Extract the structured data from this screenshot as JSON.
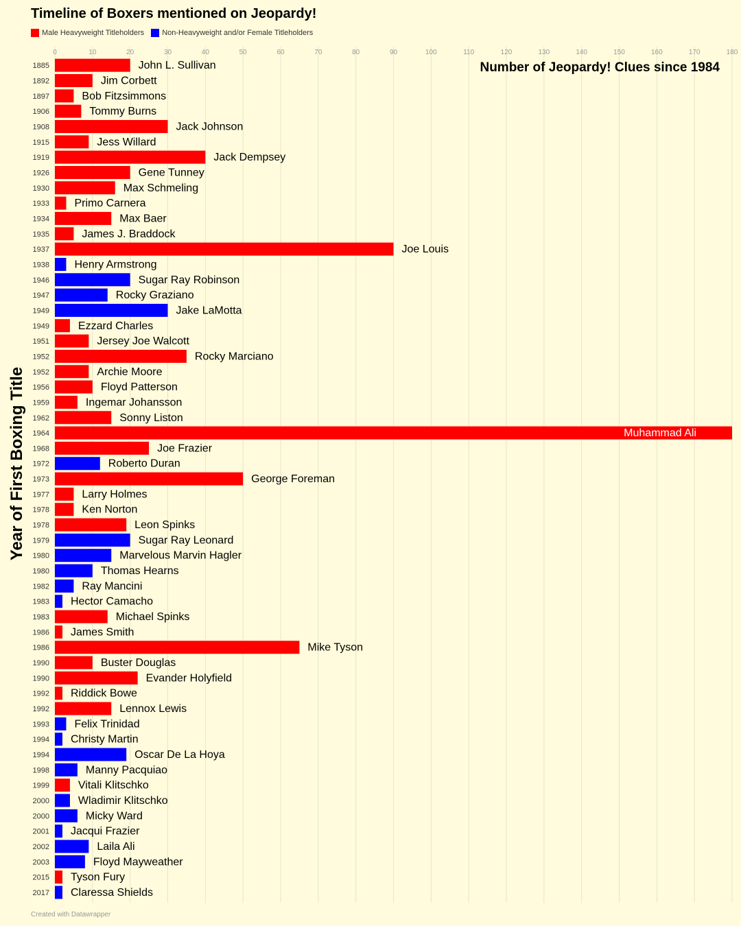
{
  "chart_data": {
    "type": "bar",
    "orientation": "horizontal",
    "title": "Timeline of Boxers mentioned on Jeopardy!",
    "xlabel": "",
    "ylabel": "Year of First Boxing Title",
    "annotation": "Number of Jeopardy! Clues since 1984",
    "credit": "Created with Datawrapper",
    "xlim": [
      0,
      180
    ],
    "xticks": [
      0,
      10,
      20,
      30,
      40,
      50,
      60,
      70,
      80,
      90,
      100,
      110,
      120,
      130,
      140,
      150,
      160,
      170,
      180
    ],
    "grid": true,
    "legend_position": "top-left",
    "legend": [
      {
        "key": "H",
        "label": "Male Heavyweight Titleholders",
        "color": "#ff0000"
      },
      {
        "key": "N",
        "label": "Non-Heavyweight and/or Female Titleholders",
        "color": "#0000ff"
      }
    ],
    "rows": [
      {
        "year": "1885",
        "name": "John L. Sullivan",
        "value": 20,
        "group": "H"
      },
      {
        "year": "1892",
        "name": "Jim Corbett",
        "value": 10,
        "group": "H"
      },
      {
        "year": "1897",
        "name": "Bob Fitzsimmons",
        "value": 5,
        "group": "H"
      },
      {
        "year": "1906",
        "name": "Tommy Burns",
        "value": 7,
        "group": "H"
      },
      {
        "year": "1908",
        "name": "Jack Johnson",
        "value": 30,
        "group": "H"
      },
      {
        "year": "1915",
        "name": "Jess Willard",
        "value": 9,
        "group": "H"
      },
      {
        "year": "1919",
        "name": "Jack Dempsey",
        "value": 40,
        "group": "H"
      },
      {
        "year": "1926",
        "name": "Gene Tunney",
        "value": 20,
        "group": "H"
      },
      {
        "year": "1930",
        "name": "Max Schmeling",
        "value": 16,
        "group": "H"
      },
      {
        "year": "1933",
        "name": "Primo Carnera",
        "value": 3,
        "group": "H"
      },
      {
        "year": "1934",
        "name": "Max Baer",
        "value": 15,
        "group": "H"
      },
      {
        "year": "1935",
        "name": "James J. Braddock",
        "value": 5,
        "group": "H"
      },
      {
        "year": "1937",
        "name": "Joe Louis",
        "value": 90,
        "group": "H"
      },
      {
        "year": "1938",
        "name": "Henry Armstrong",
        "value": 3,
        "group": "N"
      },
      {
        "year": "1946",
        "name": "Sugar Ray Robinson",
        "value": 20,
        "group": "N"
      },
      {
        "year": "1947",
        "name": "Rocky Graziano",
        "value": 14,
        "group": "N"
      },
      {
        "year": "1949",
        "name": "Jake LaMotta",
        "value": 30,
        "group": "N"
      },
      {
        "year": "1949",
        "name": "Ezzard Charles",
        "value": 4,
        "group": "H"
      },
      {
        "year": "1951",
        "name": "Jersey Joe Walcott",
        "value": 9,
        "group": "H"
      },
      {
        "year": "1952",
        "name": "Rocky Marciano",
        "value": 35,
        "group": "H"
      },
      {
        "year": "1952",
        "name": "Archie Moore",
        "value": 9,
        "group": "H"
      },
      {
        "year": "1956",
        "name": "Floyd Patterson",
        "value": 10,
        "group": "H"
      },
      {
        "year": "1959",
        "name": "Ingemar Johansson",
        "value": 6,
        "group": "H"
      },
      {
        "year": "1962",
        "name": "Sonny Liston",
        "value": 15,
        "group": "H"
      },
      {
        "year": "1964",
        "name": "Muhammad Ali",
        "value": 180,
        "group": "H"
      },
      {
        "year": "1968",
        "name": "Joe Frazier",
        "value": 25,
        "group": "H"
      },
      {
        "year": "1972",
        "name": "Roberto Duran",
        "value": 12,
        "group": "N"
      },
      {
        "year": "1973",
        "name": "George Foreman",
        "value": 50,
        "group": "H"
      },
      {
        "year": "1977",
        "name": "Larry Holmes",
        "value": 5,
        "group": "H"
      },
      {
        "year": "1978",
        "name": "Ken Norton",
        "value": 5,
        "group": "H"
      },
      {
        "year": "1978",
        "name": "Leon Spinks",
        "value": 19,
        "group": "H"
      },
      {
        "year": "1979",
        "name": "Sugar Ray Leonard",
        "value": 20,
        "group": "N"
      },
      {
        "year": "1980",
        "name": "Marvelous Marvin Hagler",
        "value": 15,
        "group": "N"
      },
      {
        "year": "1980",
        "name": "Thomas Hearns",
        "value": 10,
        "group": "N"
      },
      {
        "year": "1982",
        "name": "Ray Mancini",
        "value": 5,
        "group": "N"
      },
      {
        "year": "1983",
        "name": "Hector Camacho",
        "value": 2,
        "group": "N"
      },
      {
        "year": "1983",
        "name": "Michael Spinks",
        "value": 14,
        "group": "H"
      },
      {
        "year": "1986",
        "name": "James Smith",
        "value": 2,
        "group": "H"
      },
      {
        "year": "1986",
        "name": "Mike Tyson",
        "value": 65,
        "group": "H"
      },
      {
        "year": "1990",
        "name": "Buster Douglas",
        "value": 10,
        "group": "H"
      },
      {
        "year": "1990",
        "name": "Evander Holyfield",
        "value": 22,
        "group": "H"
      },
      {
        "year": "1992",
        "name": "Riddick Bowe",
        "value": 2,
        "group": "H"
      },
      {
        "year": "1992",
        "name": "Lennox Lewis",
        "value": 15,
        "group": "H"
      },
      {
        "year": "1993",
        "name": "Felix Trinidad",
        "value": 3,
        "group": "N"
      },
      {
        "year": "1994",
        "name": "Christy Martin",
        "value": 2,
        "group": "N"
      },
      {
        "year": "1994",
        "name": "Oscar De La Hoya",
        "value": 19,
        "group": "N"
      },
      {
        "year": "1998",
        "name": "Manny Pacquiao",
        "value": 6,
        "group": "N"
      },
      {
        "year": "1999",
        "name": "Vitali Klitschko",
        "value": 4,
        "group": "H"
      },
      {
        "year": "2000",
        "name": "Wladimir Klitschko",
        "value": 4,
        "group": "N"
      },
      {
        "year": "2000",
        "name": "Micky Ward",
        "value": 6,
        "group": "N"
      },
      {
        "year": "2001",
        "name": "Jacqui Frazier",
        "value": 2,
        "group": "N"
      },
      {
        "year": "2002",
        "name": "Laila Ali",
        "value": 9,
        "group": "N"
      },
      {
        "year": "2003",
        "name": "Floyd Mayweather",
        "value": 8,
        "group": "N"
      },
      {
        "year": "2015",
        "name": "Tyson Fury",
        "value": 2,
        "group": "H"
      },
      {
        "year": "2017",
        "name": "Claressa Shields",
        "value": 2,
        "group": "N"
      }
    ]
  }
}
